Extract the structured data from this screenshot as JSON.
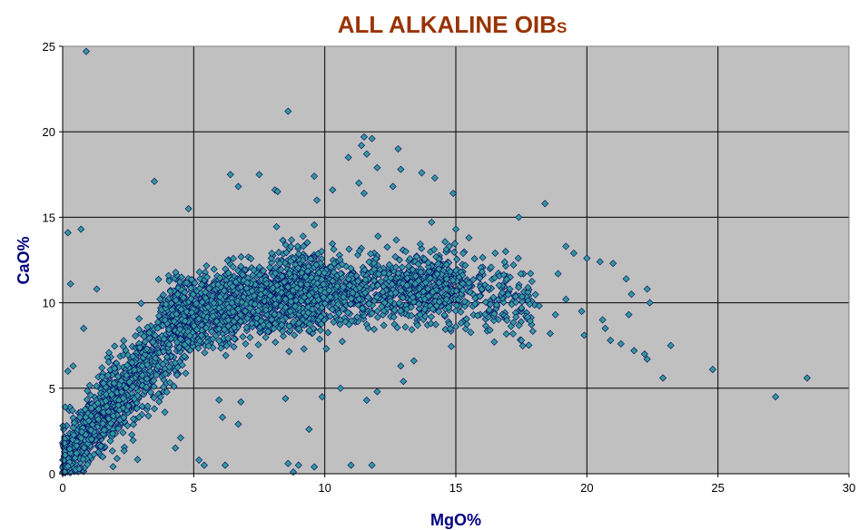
{
  "chart_data": {
    "type": "scatter",
    "title": "ALL ALKALINE OIB",
    "title_suffix": "S",
    "xlabel": "MgO%",
    "ylabel": "CaO%",
    "xlim": [
      0,
      30
    ],
    "ylim": [
      0,
      25
    ],
    "xticks": [
      0,
      5,
      10,
      15,
      20,
      25,
      30
    ],
    "yticks": [
      0,
      5,
      10,
      15,
      20,
      25
    ],
    "grid": true,
    "legend": "none",
    "colors": {
      "title": "#993300",
      "axis_label": "#000080",
      "plot_background": "#c0c0c0",
      "marker_fill": "#339999",
      "marker_edge": "#000066"
    },
    "series": [
      {
        "marker": "diamond",
        "points": [
          [
            0.9,
            24.7
          ],
          [
            8.6,
            21.2
          ],
          [
            11.5,
            19.7
          ],
          [
            11.8,
            19.6
          ],
          [
            11.4,
            19.2
          ],
          [
            12.8,
            19.0
          ],
          [
            11.6,
            18.7
          ],
          [
            10.9,
            18.5
          ],
          [
            12.0,
            17.9
          ],
          [
            12.9,
            17.8
          ],
          [
            13.7,
            17.6
          ],
          [
            6.4,
            17.5
          ],
          [
            7.5,
            17.5
          ],
          [
            9.6,
            17.4
          ],
          [
            14.2,
            17.3
          ],
          [
            3.5,
            17.1
          ],
          [
            11.3,
            17.0
          ],
          [
            6.7,
            16.8
          ],
          [
            12.6,
            16.8
          ],
          [
            8.1,
            16.6
          ],
          [
            10.3,
            16.6
          ],
          [
            8.2,
            16.5
          ],
          [
            11.5,
            16.4
          ],
          [
            14.9,
            16.4
          ],
          [
            9.7,
            16.0
          ],
          [
            18.4,
            15.8
          ],
          [
            4.8,
            15.5
          ],
          [
            17.4,
            15.0
          ],
          [
            0.2,
            14.1
          ],
          [
            0.7,
            14.3
          ],
          [
            0.3,
            11.1
          ],
          [
            1.3,
            10.8
          ],
          [
            0.8,
            8.5
          ],
          [
            0.2,
            6.0
          ],
          [
            0.4,
            6.3
          ],
          [
            0.1,
            3.9
          ],
          [
            3.5,
            3.8
          ],
          [
            3.9,
            3.6
          ],
          [
            4.5,
            2.1
          ],
          [
            4.3,
            1.5
          ],
          [
            5.2,
            0.8
          ],
          [
            5.4,
            0.5
          ],
          [
            6.2,
            0.5
          ],
          [
            8.6,
            0.6
          ],
          [
            9.0,
            0.5
          ],
          [
            9.6,
            0.4
          ],
          [
            8.8,
            0.1
          ],
          [
            11.0,
            0.5
          ],
          [
            11.8,
            0.5
          ],
          [
            6.1,
            3.3
          ],
          [
            6.8,
            4.2
          ],
          [
            6.7,
            2.9
          ],
          [
            8.5,
            4.4
          ],
          [
            9.4,
            2.6
          ],
          [
            9.9,
            4.5
          ],
          [
            11.6,
            4.3
          ],
          [
            12.0,
            4.8
          ],
          [
            13.0,
            5.4
          ],
          [
            12.9,
            6.3
          ],
          [
            13.4,
            6.6
          ],
          [
            10.6,
            5.0
          ],
          [
            20.0,
            12.6
          ],
          [
            20.5,
            12.4
          ],
          [
            21.0,
            12.3
          ],
          [
            21.5,
            11.4
          ],
          [
            21.7,
            10.5
          ],
          [
            22.3,
            10.8
          ],
          [
            22.4,
            10.0
          ],
          [
            21.6,
            9.3
          ],
          [
            20.6,
            9.0
          ],
          [
            19.8,
            9.5
          ],
          [
            20.7,
            8.5
          ],
          [
            20.9,
            7.8
          ],
          [
            21.3,
            7.6
          ],
          [
            21.8,
            7.2
          ],
          [
            22.2,
            7.0
          ],
          [
            22.3,
            6.7
          ],
          [
            23.2,
            7.5
          ],
          [
            22.9,
            5.6
          ],
          [
            24.8,
            6.1
          ],
          [
            27.2,
            4.5
          ],
          [
            28.4,
            5.6
          ],
          [
            19.2,
            13.3
          ],
          [
            19.5,
            12.9
          ],
          [
            18.9,
            11.7
          ],
          [
            19.2,
            10.2
          ],
          [
            18.8,
            9.3
          ],
          [
            18.6,
            8.2
          ],
          [
            19.9,
            8.1
          ],
          [
            17.5,
            7.8
          ],
          [
            16.3,
            8.4
          ],
          [
            15.0,
            8.6
          ],
          [
            16.5,
            12.9
          ],
          [
            16.9,
            13.0
          ],
          [
            15.5,
            13.8
          ],
          [
            15.0,
            14.3
          ]
        ],
        "dense_clusters": [
          {
            "x": [
              0,
              2
            ],
            "y_at_x_min": 0.5,
            "y_at_x_max": 4.5,
            "y_spread": 1.5,
            "count": 500
          },
          {
            "x": [
              1.5,
              5
            ],
            "y_at_x_min": 3.5,
            "y_at_x_max": 9.5,
            "y_spread": 2.2,
            "count": 650
          },
          {
            "x": [
              4,
              10
            ],
            "y_at_x_min": 9.0,
            "y_at_x_max": 11.0,
            "y_spread": 2.0,
            "count": 1300
          },
          {
            "x": [
              8,
              15
            ],
            "y_at_x_min": 10.5,
            "y_at_x_max": 11.0,
            "y_spread": 1.8,
            "count": 850
          },
          {
            "x": [
              13,
              18
            ],
            "y_at_x_min": 11.0,
            "y_at_x_max": 10.0,
            "y_spread": 2.0,
            "count": 300
          }
        ]
      }
    ]
  }
}
